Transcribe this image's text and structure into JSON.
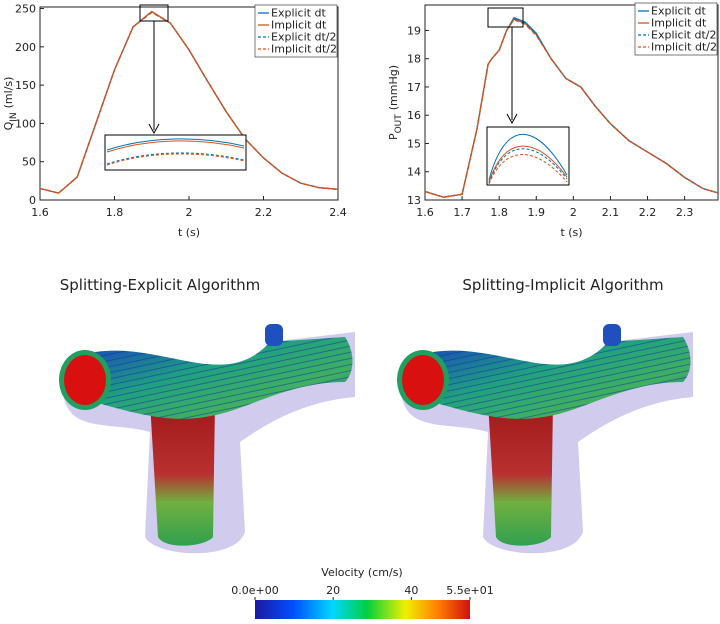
{
  "chart_data": [
    {
      "type": "line",
      "xlabel": "t (s)",
      "ylabel": {
        "main": "Q",
        "sub": "IN",
        "unit": "(ml/s)"
      },
      "x": [
        1.6,
        1.65,
        1.7,
        1.75,
        1.8,
        1.85,
        1.9,
        1.95,
        2.0,
        2.05,
        2.1,
        2.15,
        2.2,
        2.25,
        2.3,
        2.35,
        2.4
      ],
      "series": [
        {
          "name": "Explicit dt",
          "color": "#0072bd",
          "dashed": false,
          "values": [
            15,
            9,
            30,
            100,
            170,
            226,
            246,
            231,
            196,
            155,
            115,
            80,
            55,
            35,
            22,
            16,
            14
          ]
        },
        {
          "name": "Implicit dt",
          "color": "#d95319",
          "dashed": false,
          "values": [
            15,
            9,
            30,
            100,
            170,
            226,
            246,
            231,
            196,
            155,
            115,
            80,
            55,
            35,
            22,
            16,
            14
          ]
        },
        {
          "name": "Explicit dt/2",
          "color": "#0072bd",
          "dashed": true,
          "values": [
            15,
            9,
            30,
            100,
            170,
            226,
            245,
            231,
            196,
            155,
            115,
            80,
            55,
            35,
            22,
            16,
            14
          ]
        },
        {
          "name": "Implicit dt/2",
          "color": "#d95319",
          "dashed": true,
          "values": [
            15,
            9,
            30,
            100,
            170,
            226,
            245,
            231,
            196,
            155,
            115,
            80,
            55,
            35,
            22,
            16,
            14
          ]
        }
      ],
      "xlim": [
        1.6,
        2.4
      ],
      "xticks": [
        1.6,
        1.8,
        2,
        2.2,
        2.4
      ],
      "ylim": [
        0,
        252
      ],
      "yticks": [
        0,
        50,
        100,
        150,
        200,
        250
      ],
      "legend": "upper right"
    },
    {
      "type": "line",
      "xlabel": "t (s)",
      "ylabel": {
        "main": "P",
        "sub": "OUT",
        "unit": "(mmHg)"
      },
      "x": [
        1.6,
        1.65,
        1.7,
        1.74,
        1.77,
        1.78,
        1.8,
        1.82,
        1.84,
        1.87,
        1.9,
        1.94,
        1.98,
        2.02,
        2.06,
        2.1,
        2.15,
        2.2,
        2.25,
        2.3,
        2.35,
        2.39
      ],
      "series": [
        {
          "name": "Explicit dt",
          "color": "#0072bd",
          "dashed": false,
          "values": [
            13.3,
            13.1,
            13.2,
            15.5,
            17.8,
            18.0,
            18.3,
            19.0,
            19.45,
            19.3,
            18.9,
            18.0,
            17.3,
            17.0,
            16.3,
            15.7,
            15.1,
            14.7,
            14.3,
            13.8,
            13.4,
            13.25
          ]
        },
        {
          "name": "Implicit dt",
          "color": "#d95319",
          "dashed": false,
          "values": [
            13.3,
            13.1,
            13.2,
            15.5,
            17.8,
            18.0,
            18.3,
            19.0,
            19.4,
            19.25,
            18.85,
            18.0,
            17.3,
            17.0,
            16.3,
            15.7,
            15.1,
            14.7,
            14.3,
            13.8,
            13.4,
            13.25
          ]
        },
        {
          "name": "Explicit dt/2",
          "color": "#0072bd",
          "dashed": true,
          "values": [
            13.3,
            13.1,
            13.2,
            15.5,
            17.8,
            18.0,
            18.3,
            19.0,
            19.4,
            19.25,
            18.85,
            18.0,
            17.3,
            17.0,
            16.3,
            15.7,
            15.1,
            14.7,
            14.3,
            13.8,
            13.4,
            13.25
          ]
        },
        {
          "name": "Implicit dt/2",
          "color": "#d95319",
          "dashed": true,
          "values": [
            13.3,
            13.1,
            13.2,
            15.5,
            17.8,
            18.0,
            18.3,
            19.0,
            19.38,
            19.22,
            18.82,
            18.0,
            17.3,
            17.0,
            16.3,
            15.7,
            15.1,
            14.7,
            14.3,
            13.8,
            13.4,
            13.25
          ]
        }
      ],
      "xlim": [
        1.6,
        2.39
      ],
      "xticks": [
        1.6,
        1.7,
        1.8,
        1.9,
        2,
        2.1,
        2.2,
        2.3
      ],
      "ylim": [
        13,
        19.9
      ],
      "yticks": [
        13,
        14,
        15,
        16,
        17,
        18,
        19
      ],
      "legend": "upper right"
    }
  ],
  "panels": [
    {
      "title": "Splitting-Explicit Algorithm"
    },
    {
      "title": "Splitting-Implicit Algorithm"
    }
  ],
  "colorbar": {
    "title": "Velocity (cm/s)",
    "lim": [
      0,
      55
    ],
    "ticks": [
      {
        "value": 0,
        "label": "0.0e+00"
      },
      20,
      40,
      {
        "value": 55,
        "label": "5.5e+01"
      }
    ]
  }
}
